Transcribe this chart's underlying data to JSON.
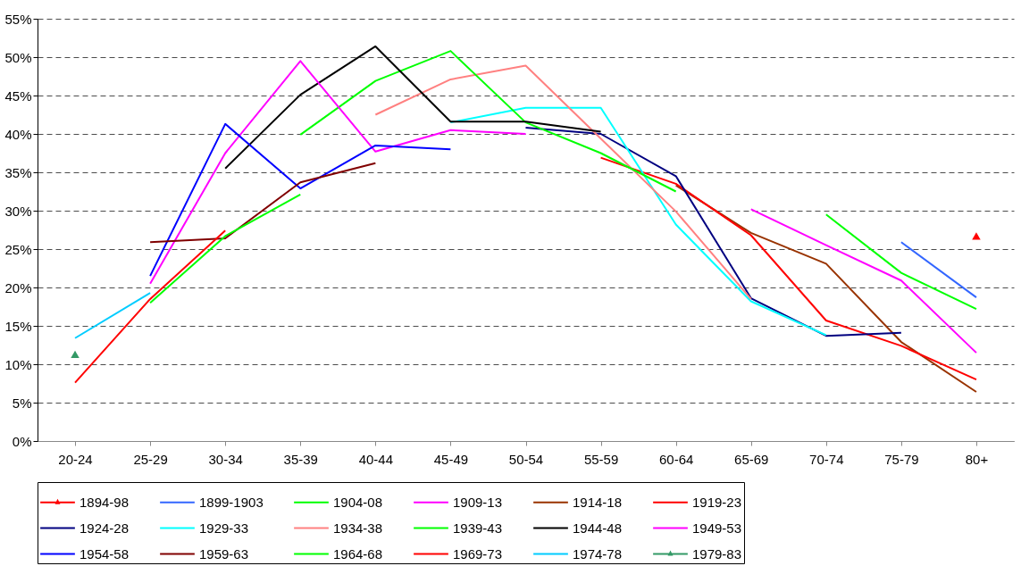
{
  "chart_data": {
    "type": "line",
    "categories": [
      "20-24",
      "25-29",
      "30-34",
      "35-39",
      "40-44",
      "45-49",
      "50-54",
      "55-59",
      "60-64",
      "65-69",
      "70-74",
      "75-79",
      "80+"
    ],
    "ylim": [
      0,
      55
    ],
    "yticks": [
      {
        "value": 0,
        "label": "0%"
      },
      {
        "value": 5,
        "label": "5%"
      },
      {
        "value": 10,
        "label": "10%"
      },
      {
        "value": 15,
        "label": "15%"
      },
      {
        "value": 20,
        "label": "20%"
      },
      {
        "value": 25,
        "label": "25%"
      },
      {
        "value": 30,
        "label": "30%"
      },
      {
        "value": 35,
        "label": "35%"
      },
      {
        "value": 40,
        "label": "40%"
      },
      {
        "value": 45,
        "label": "45%"
      },
      {
        "value": 50,
        "label": "50%"
      },
      {
        "value": 55,
        "label": "55%"
      }
    ],
    "grid": "y",
    "legend": "bottom",
    "line_style": "solid",
    "series": [
      {
        "name": "1894-98",
        "color": "#ff0000",
        "marker": "triangle",
        "values": [
          null,
          null,
          null,
          null,
          null,
          null,
          null,
          null,
          null,
          null,
          null,
          null,
          26.7
        ]
      },
      {
        "name": "1899-1903",
        "color": "#3366ff",
        "values": [
          null,
          null,
          null,
          null,
          null,
          null,
          null,
          null,
          null,
          null,
          null,
          25.9,
          18.7
        ]
      },
      {
        "name": "1904-08",
        "color": "#00ff00",
        "values": [
          null,
          null,
          null,
          null,
          null,
          null,
          null,
          null,
          null,
          null,
          29.5,
          21.9,
          17.2
        ]
      },
      {
        "name": "1909-13",
        "color": "#ff00ff",
        "values": [
          null,
          null,
          null,
          null,
          null,
          null,
          null,
          null,
          null,
          30.2,
          25.5,
          20.9,
          11.5
        ]
      },
      {
        "name": "1914-18",
        "color": "#993300",
        "values": [
          null,
          null,
          null,
          null,
          null,
          null,
          null,
          null,
          33.3,
          27.1,
          23.1,
          12.9,
          6.4
        ]
      },
      {
        "name": "1919-23",
        "color": "#ff0000",
        "values": [
          null,
          null,
          null,
          null,
          null,
          null,
          null,
          36.9,
          33.5,
          26.8,
          15.7,
          12.4,
          8.0
        ]
      },
      {
        "name": "1924-28",
        "color": "#000080",
        "values": [
          null,
          null,
          null,
          null,
          null,
          null,
          40.8,
          40.0,
          34.5,
          18.6,
          13.7,
          14.1,
          null
        ]
      },
      {
        "name": "1929-33",
        "color": "#00ffff",
        "values": [
          null,
          null,
          null,
          null,
          null,
          41.5,
          43.4,
          43.4,
          28.2,
          18.2,
          13.8,
          null,
          null
        ]
      },
      {
        "name": "1934-38",
        "color": "#ff8080",
        "values": [
          null,
          null,
          null,
          null,
          42.5,
          47.1,
          48.9,
          39.4,
          29.9,
          18.5,
          null,
          null,
          null
        ]
      },
      {
        "name": "1939-43",
        "color": "#00ff00",
        "values": [
          null,
          null,
          null,
          39.9,
          46.9,
          50.8,
          41.5,
          37.5,
          32.5,
          null,
          null,
          null,
          null
        ]
      },
      {
        "name": "1944-48",
        "color": "#000000",
        "values": [
          null,
          null,
          35.5,
          45.1,
          51.4,
          41.6,
          41.6,
          40.3,
          null,
          null,
          null,
          null,
          null
        ]
      },
      {
        "name": "1949-53",
        "color": "#ff00ff",
        "values": [
          null,
          20.5,
          37.5,
          49.5,
          37.7,
          40.5,
          40.0,
          null,
          null,
          null,
          null,
          null,
          null
        ]
      },
      {
        "name": "1954-58",
        "color": "#0000ff",
        "values": [
          null,
          21.5,
          41.3,
          32.9,
          38.5,
          38.0,
          null,
          null,
          null,
          null,
          null,
          null,
          null
        ]
      },
      {
        "name": "1959-63",
        "color": "#800000",
        "values": [
          null,
          25.9,
          26.4,
          33.7,
          36.2,
          null,
          null,
          null,
          null,
          null,
          null,
          null,
          null
        ]
      },
      {
        "name": "1964-68",
        "color": "#00ff00",
        "values": [
          null,
          18.0,
          26.7,
          32.1,
          null,
          null,
          null,
          null,
          null,
          null,
          null,
          null,
          null
        ]
      },
      {
        "name": "1969-73",
        "color": "#ff0000",
        "values": [
          7.6,
          18.5,
          27.4,
          null,
          null,
          null,
          null,
          null,
          null,
          null,
          null,
          null,
          null
        ]
      },
      {
        "name": "1974-78",
        "color": "#00ccff",
        "values": [
          13.4,
          19.3,
          null,
          null,
          null,
          null,
          null,
          null,
          null,
          null,
          null,
          null,
          null
        ]
      },
      {
        "name": "1979-83",
        "color": "#339966",
        "marker": "triangle",
        "values": [
          11.3,
          null,
          null,
          null,
          null,
          null,
          null,
          null,
          null,
          null,
          null,
          null,
          null
        ]
      }
    ]
  }
}
